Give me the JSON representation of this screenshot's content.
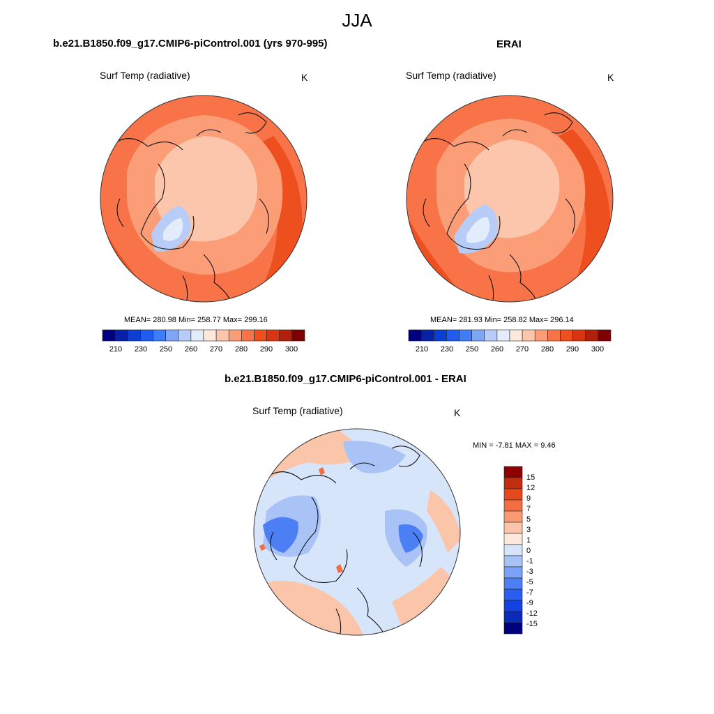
{
  "figure": {
    "season": "JJA"
  },
  "panels": [
    {
      "title": "b.e21.B1850.f09_g17.CMIP6-piControl.001 (yrs 970-995)",
      "variable": "Surf Temp (radiative)",
      "units": "K",
      "stats": "MEAN= 280.98  Min= 258.77  Max= 299.16"
    },
    {
      "title": "ERAI",
      "variable": "Surf Temp (radiative)",
      "units": "K",
      "stats": "MEAN= 281.93  Min= 258.82  Max= 296.14"
    },
    {
      "title": "b.e21.B1850.f09_g17.CMIP6-piControl.001 - ERAI",
      "variable": "Surf Temp (radiative)",
      "units": "K",
      "stats": "MIN =  -7.81 MAX =   9.46"
    }
  ],
  "colorbar_abs": {
    "colors": [
      "#00007f",
      "#0720a8",
      "#0c3fd1",
      "#1f5cf0",
      "#3f7cf7",
      "#7fa6f6",
      "#b7cdf7",
      "#e3ecfb",
      "#fde8dc",
      "#fcc6ad",
      "#fb9e78",
      "#f87448",
      "#ee4f1e",
      "#d93512",
      "#b0200a",
      "#7f0000"
    ],
    "tick_labels": [
      "210",
      "230",
      "250",
      "260",
      "270",
      "280",
      "290",
      "300"
    ]
  },
  "colorbar_diff": {
    "colors": [
      "#00007f",
      "#0a2ab8",
      "#1342e0",
      "#2b5ef0",
      "#4c7ef4",
      "#7ba2f6",
      "#a9c3f7",
      "#d7e5fb",
      "#fde8dc",
      "#fbc5aa",
      "#f99a73",
      "#f36f43",
      "#e44a1b",
      "#c12d0e",
      "#8e0000"
    ],
    "tick_labels": [
      "15",
      "12",
      "9",
      "7",
      "5",
      "3",
      "1",
      "0",
      "-1",
      "-3",
      "-5",
      "-7",
      "-9",
      "-12",
      "-15"
    ]
  },
  "map_fill_colors": {
    "pole": "#fcc6ad",
    "mid": "#fb9e78",
    "outer": "#f87448",
    "warm": "#ee4f1e",
    "greenland": "#b7cdf7",
    "greenland_core": "#e3ecfb",
    "diff_base": "#d7e5fb",
    "diff_blue": "#a9c3f7",
    "diff_dark": "#4c7ef4",
    "diff_red": "#fbc5aa",
    "diff_hot": "#f36f43"
  }
}
